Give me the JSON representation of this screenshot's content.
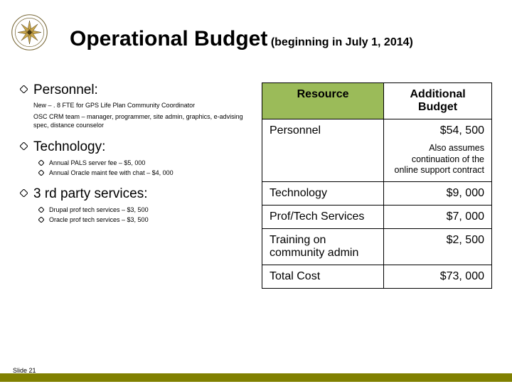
{
  "colors": {
    "table_header_bg": "#9bbb59",
    "rule_color": "#808000",
    "logo_text": "#7a6a3a",
    "logo_gold": "#c7a44a",
    "logo_dark": "#4a3c14"
  },
  "title": {
    "main": "Operational Budget",
    "sub": " (beginning in July 1, 2014)"
  },
  "bullets": [
    {
      "label": "Personnel:",
      "notes": [
        "New – . 8 FTE for GPS Life Plan Community Coordinator",
        "OSC CRM team – manager, programmer, site admin, graphics, e-advising spec, distance counselor"
      ],
      "sub": []
    },
    {
      "label": "Technology:",
      "notes": [],
      "sub": [
        "Annual PALS server fee – $5, 000",
        "Annual Oracle maint fee with chat – $4, 000"
      ]
    },
    {
      "label": "3 rd party services:",
      "notes": [],
      "sub": [
        "Drupal prof tech services – $3, 500",
        "Oracle prof tech services – $3, 500"
      ]
    }
  ],
  "table": {
    "headers": [
      "Resource",
      "Additional Budget"
    ],
    "rows": [
      {
        "resource": "Personnel",
        "value": "$54, 500",
        "note": "Also assumes continuation of the online support contract"
      },
      {
        "resource": "Technology",
        "value": "$9, 000",
        "note": ""
      },
      {
        "resource": "Prof/Tech Services",
        "value": "$7, 000",
        "note": ""
      },
      {
        "resource": "Training on community admin",
        "value": "$2, 500",
        "note": ""
      },
      {
        "resource": "Total Cost",
        "value": "$73, 000",
        "note": ""
      }
    ]
  },
  "footer": "Slide 21"
}
